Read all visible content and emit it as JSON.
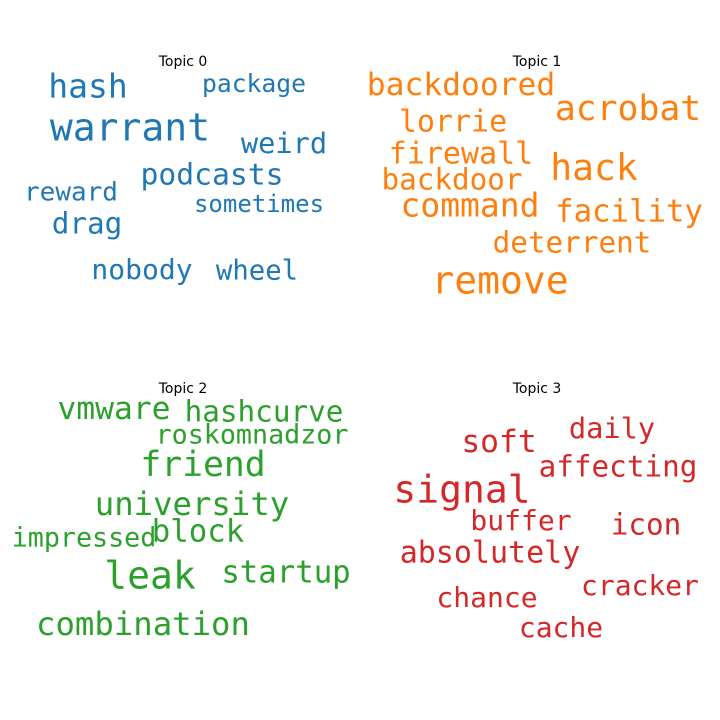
{
  "chart_data": {
    "type": "wordcloud",
    "panels": [
      {
        "title": "Topic 0",
        "color": "#1f77b4",
        "words": [
          {
            "text": "warrant",
            "weight": 1.0
          },
          {
            "text": "hash",
            "weight": 0.85
          },
          {
            "text": "podcasts",
            "weight": 0.75
          },
          {
            "text": "drag",
            "weight": 0.74
          },
          {
            "text": "weird",
            "weight": 0.72
          },
          {
            "text": "nobody",
            "weight": 0.7
          },
          {
            "text": "wheel",
            "weight": 0.68
          },
          {
            "text": "reward",
            "weight": 0.64
          },
          {
            "text": "package",
            "weight": 0.6
          },
          {
            "text": "sometimes",
            "weight": 0.58
          }
        ]
      },
      {
        "title": "Topic 1",
        "color": "#ff7f0e",
        "words": [
          {
            "text": "remove",
            "weight": 1.0
          },
          {
            "text": "hack",
            "weight": 0.95
          },
          {
            "text": "acrobat",
            "weight": 0.9
          },
          {
            "text": "command",
            "weight": 0.85
          },
          {
            "text": "backdoored",
            "weight": 0.8
          },
          {
            "text": "facility",
            "weight": 0.78
          },
          {
            "text": "firewall",
            "weight": 0.76
          },
          {
            "text": "lorrie",
            "weight": 0.76
          },
          {
            "text": "backdoor",
            "weight": 0.74
          },
          {
            "text": "deterrent",
            "weight": 0.74
          }
        ]
      },
      {
        "title": "Topic 2",
        "color": "#2ca02c",
        "words": [
          {
            "text": "leak",
            "weight": 1.0
          },
          {
            "text": "friend",
            "weight": 0.9
          },
          {
            "text": "university",
            "weight": 0.83
          },
          {
            "text": "combination",
            "weight": 0.83
          },
          {
            "text": "vmware",
            "weight": 0.8
          },
          {
            "text": "startup",
            "weight": 0.78
          },
          {
            "text": "block",
            "weight": 0.78
          },
          {
            "text": "hashcurve",
            "weight": 0.74
          },
          {
            "text": "roskomnadzor",
            "weight": 0.66
          },
          {
            "text": "impressed",
            "weight": 0.66
          }
        ]
      },
      {
        "title": "Topic 3",
        "color": "#d62728",
        "words": [
          {
            "text": "signal",
            "weight": 1.0
          },
          {
            "text": "soft",
            "weight": 0.8
          },
          {
            "text": "absolutely",
            "weight": 0.76
          },
          {
            "text": "affecting",
            "weight": 0.74
          },
          {
            "text": "icon",
            "weight": 0.74
          },
          {
            "text": "daily",
            "weight": 0.72
          },
          {
            "text": "buffer",
            "weight": 0.7
          },
          {
            "text": "cracker",
            "weight": 0.7
          },
          {
            "text": "chance",
            "weight": 0.7
          },
          {
            "text": "cache",
            "weight": 0.7
          }
        ]
      }
    ]
  }
}
